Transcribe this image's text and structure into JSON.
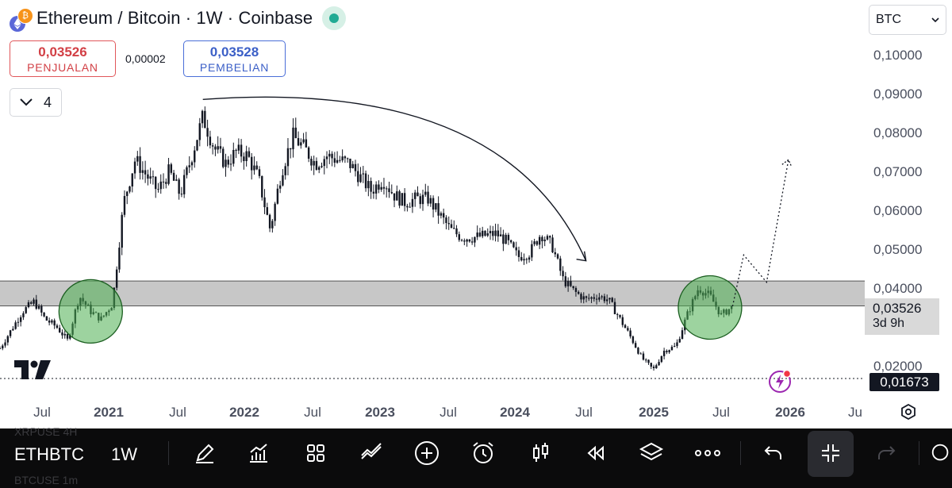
{
  "header": {
    "title": "Ethereum / Bitcoin · 1W · Coinbase",
    "eth_logo": "eth-logo-icon",
    "btc_glyph": "₿",
    "status_color": "#22ab94"
  },
  "quotes": {
    "sell_price": "0,03526",
    "sell_label": "PENJUALAN",
    "spread": "0,00002",
    "buy_price": "0,03528",
    "buy_label": "PEMBELIAN"
  },
  "indicators_toggle": {
    "count": "4"
  },
  "currency": {
    "selected": "BTC"
  },
  "price_axis": {
    "labels": [
      "0,10000",
      "0,09000",
      "0,08000",
      "0,07000",
      "0,06000",
      "0,05000",
      "0,04000",
      "0,02000"
    ],
    "current_price": "0,03526",
    "countdown": "3d 9h",
    "low_marker": "0,01673"
  },
  "time_axis": {
    "labels": [
      "Jul",
      "2021",
      "Jul",
      "2022",
      "Jul",
      "2023",
      "Jul",
      "2024",
      "Jul",
      "2025",
      "Jul",
      "2026",
      "Ju"
    ]
  },
  "chart_data": {
    "type": "candlestick",
    "symbol": "ETHBTC",
    "interval": "1W",
    "ylim": [
      0.0153,
      0.1035
    ],
    "support_zone": [
      0.0354,
      0.0418
    ],
    "low_line": 0.01673,
    "close_trend": [
      [
        "2020-06",
        0.0245
      ],
      [
        "2020-08",
        0.034
      ],
      [
        "2020-09",
        0.0365
      ],
      [
        "2020-10",
        0.032
      ],
      [
        "2020-11",
        0.03
      ],
      [
        "2020-12",
        0.0265
      ],
      [
        "2021-01",
        0.038
      ],
      [
        "2021-02",
        0.034
      ],
      [
        "2021-03",
        0.032
      ],
      [
        "2021-04",
        0.036
      ],
      [
        "2021-05",
        0.062
      ],
      [
        "2021-06",
        0.073
      ],
      [
        "2021-08",
        0.065
      ],
      [
        "2021-09",
        0.07
      ],
      [
        "2021-10",
        0.064
      ],
      [
        "2021-11",
        0.074
      ],
      [
        "2021-12",
        0.084
      ],
      [
        "2022-01",
        0.076
      ],
      [
        "2022-02",
        0.072
      ],
      [
        "2022-03",
        0.075
      ],
      [
        "2022-04",
        0.074
      ],
      [
        "2022-05",
        0.068
      ],
      [
        "2022-06",
        0.055
      ],
      [
        "2022-07",
        0.07
      ],
      [
        "2022-08",
        0.079
      ],
      [
        "2022-09",
        0.076
      ],
      [
        "2022-10",
        0.072
      ],
      [
        "2022-11",
        0.074
      ],
      [
        "2023-01",
        0.072
      ],
      [
        "2023-03",
        0.065
      ],
      [
        "2023-04",
        0.068
      ],
      [
        "2023-05",
        0.064
      ],
      [
        "2023-06",
        0.062
      ],
      [
        "2023-07",
        0.063
      ],
      [
        "2023-08",
        0.063
      ],
      [
        "2023-10",
        0.055
      ],
      [
        "2023-11",
        0.053
      ],
      [
        "2023-12",
        0.053
      ],
      [
        "2024-02",
        0.054
      ],
      [
        "2024-03",
        0.052
      ],
      [
        "2024-04",
        0.048
      ],
      [
        "2024-05",
        0.049
      ],
      [
        "2024-06",
        0.054
      ],
      [
        "2024-07",
        0.051
      ],
      [
        "2024-08",
        0.042
      ],
      [
        "2024-09",
        0.039
      ],
      [
        "2024-10",
        0.037
      ],
      [
        "2024-11",
        0.038
      ],
      [
        "2024-12",
        0.037
      ],
      [
        "2025-01",
        0.032
      ],
      [
        "2025-02",
        0.027
      ],
      [
        "2025-03",
        0.022
      ],
      [
        "2025-04",
        0.019
      ],
      [
        "2025-05",
        0.024
      ],
      [
        "2025-06",
        0.025
      ],
      [
        "2025-07",
        0.033
      ],
      [
        "2025-08",
        0.04
      ],
      [
        "2025-09",
        0.038
      ],
      [
        "2025-10",
        0.033
      ],
      [
        "2025-11",
        0.0353
      ]
    ],
    "annotations": {
      "circles_at": [
        [
          "2021-02",
          0.034
        ],
        [
          "2025-09",
          0.035
        ]
      ],
      "arc_from": [
        "2021-12",
        0.0885
      ],
      "arc_to": [
        "2024-10",
        0.047
      ],
      "projection": [
        [
          "2025-11",
          0.0353
        ],
        [
          "2025-12",
          0.0485
        ],
        [
          "2026-02",
          0.0415
        ],
        [
          "2026-04",
          0.073
        ]
      ]
    },
    "colors": {
      "candle": "#131722",
      "zone": "#bdbdbd",
      "circle": "#4caf50"
    }
  },
  "toolbar": {
    "symbol": "ETHBTC",
    "interval": "1W",
    "ghost_top": "XRPUSE    4H",
    "ghost_bottom": "BTCUSE    1m",
    "icons": [
      "pencil-icon",
      "indicator-chart-icon",
      "grid-icon",
      "trend-icon",
      "add-icon",
      "alarm-icon",
      "candles-icon",
      "replay-icon",
      "layers-icon",
      "more-icon",
      "undo-icon",
      "collapse-icon",
      "redo-icon",
      "search-icon"
    ]
  }
}
